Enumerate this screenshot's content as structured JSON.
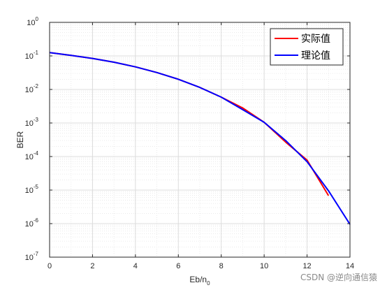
{
  "chart_data": {
    "type": "line",
    "xlabel": "Eb/n",
    "xlabel_sub": "0",
    "ylabel": "BER",
    "xlim": [
      0,
      14
    ],
    "ylim": [
      1e-07,
      1
    ],
    "y_scale": "log",
    "x_ticks": [
      0,
      2,
      4,
      6,
      8,
      10,
      12,
      14
    ],
    "y_tick_exponents": [
      0,
      -1,
      -2,
      -3,
      -4,
      -5,
      -6,
      -7
    ],
    "y_tick_base": "10",
    "grid": true,
    "legend_position": "top-right",
    "series": [
      {
        "name": "实际值",
        "color": "#ff0000",
        "x": [
          0,
          1,
          2,
          3,
          4,
          5,
          6,
          7,
          8,
          9,
          10,
          11,
          12,
          13
        ],
        "y": [
          0.125,
          0.104,
          0.084,
          0.065,
          0.047,
          0.032,
          0.0201,
          0.0115,
          0.0059,
          0.0028,
          0.00105,
          0.00027,
          7.8e-05,
          6.8e-06
        ]
      },
      {
        "name": "理论值",
        "color": "#0000ff",
        "x": [
          0,
          1,
          2,
          3,
          4,
          5,
          6,
          7,
          8,
          9,
          10,
          11,
          12,
          13,
          14
        ],
        "y": [
          0.125,
          0.104,
          0.084,
          0.065,
          0.047,
          0.032,
          0.0201,
          0.0115,
          0.0059,
          0.0025,
          0.00105,
          0.0003,
          7e-05,
          9.5e-06,
          9.5e-07
        ]
      }
    ]
  },
  "watermark": "CSDN @逆向通信猿"
}
